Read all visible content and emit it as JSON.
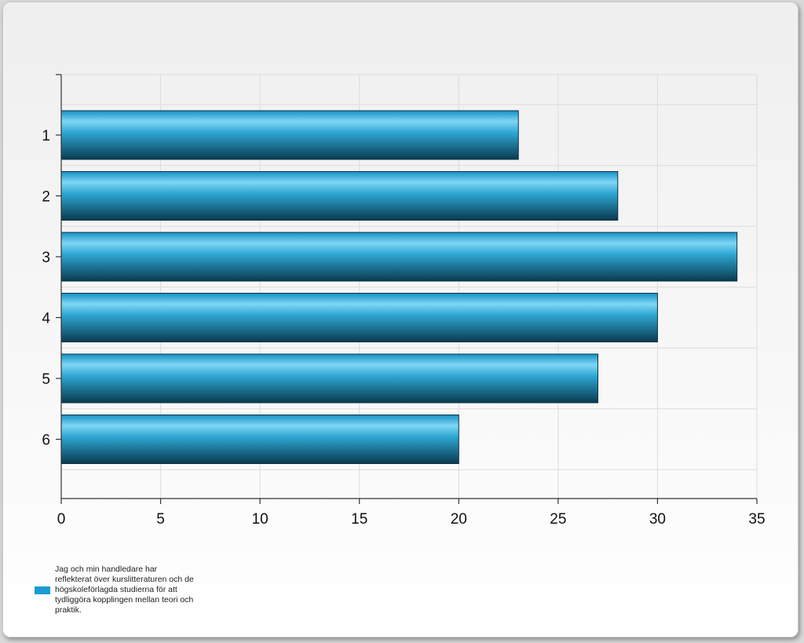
{
  "chart_data": {
    "type": "bar",
    "orientation": "horizontal",
    "categories": [
      "1",
      "2",
      "3",
      "4",
      "5",
      "6"
    ],
    "series": [
      {
        "name": "Jag och min handledare har reflekterat över kurslitteraturen och de högskoleförlagda studierna för att tydliggöra kopplingen mellan teori och praktik.",
        "values": [
          23,
          28,
          34,
          30,
          27,
          20
        ]
      }
    ],
    "xlim": [
      0,
      35
    ],
    "x_ticks": [
      0,
      5,
      10,
      15,
      20,
      25,
      30,
      35
    ],
    "grid": true,
    "legend_position": "bottom-left",
    "colors": {
      "bar": "#1a9bd4",
      "bar_dark": "#0b3f55",
      "bar_light": "#7fd6f5",
      "grid": "#dcdcdc",
      "axis": "#333333"
    }
  }
}
